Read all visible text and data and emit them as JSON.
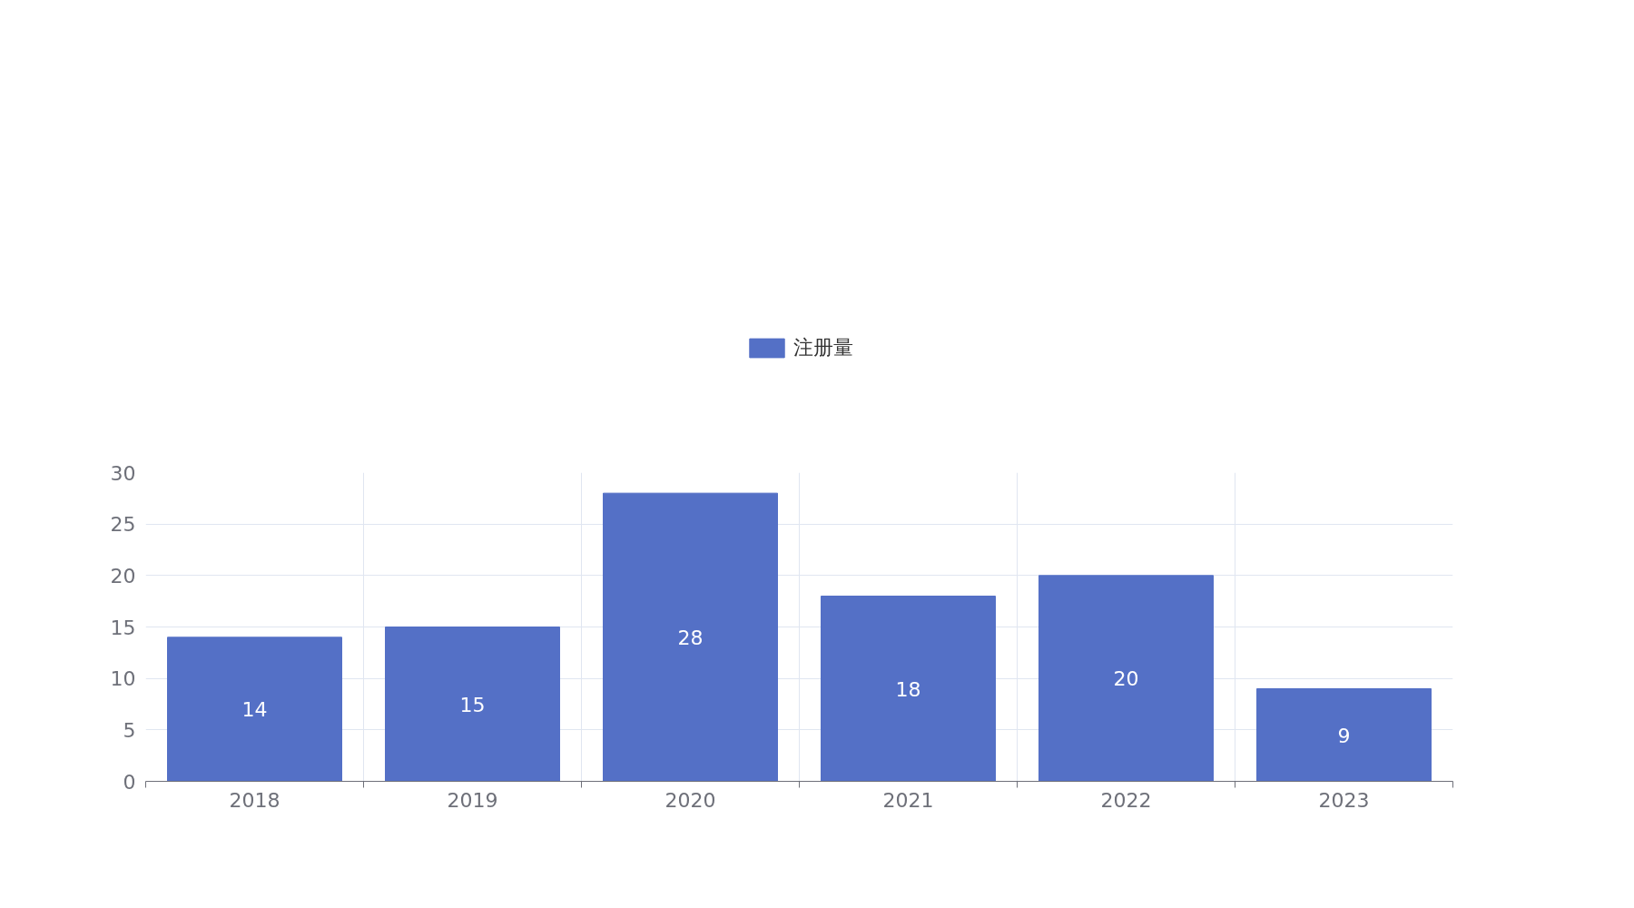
{
  "chart_data": {
    "type": "bar",
    "categories": [
      "2018",
      "2019",
      "2020",
      "2021",
      "2022",
      "2023"
    ],
    "series": [
      {
        "name": "注册量",
        "color": "#5470c6",
        "values": [
          14,
          15,
          28,
          18,
          20,
          9
        ]
      }
    ],
    "ylim": [
      0,
      30
    ],
    "yticks": [
      0,
      5,
      10,
      15,
      20,
      25,
      30
    ],
    "grid": true,
    "legend": "top",
    "data_labels": true
  }
}
